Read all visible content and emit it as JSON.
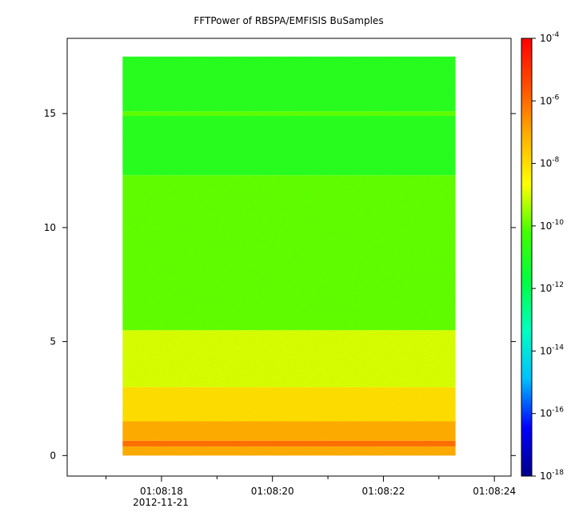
{
  "chart_data": {
    "type": "heatmap",
    "title": "FFTPower of RBSPA/EMFISIS  BuSamples",
    "xlabel": "",
    "ylabel": "",
    "x_axis": {
      "type": "time",
      "date_label": "2012-11-21",
      "range": [
        "01:08:16.3",
        "01:08:24.3"
      ],
      "ticks": [
        "01:08:18",
        "01:08:20",
        "01:08:22",
        "01:08:24"
      ],
      "minor_ticks": [
        "01:08:17",
        "01:08:19",
        "01:08:21",
        "01:08:23"
      ]
    },
    "y_axis": {
      "range": [
        -0.9,
        18.3
      ],
      "ticks": [
        0,
        5,
        10,
        15
      ]
    },
    "data_extent": {
      "x": [
        "01:08:17.3",
        "01:08:23.3"
      ],
      "y": [
        0,
        17.5
      ]
    },
    "colorbar": {
      "scale": "log",
      "range": [
        "1e-18",
        "1e-4"
      ],
      "tick_base": "10",
      "tick_exponents": [
        "-4",
        "-6",
        "-8",
        "-10",
        "-12",
        "-14",
        "-16",
        "-18"
      ],
      "colormap": [
        "#00008b",
        "#0000ff",
        "#00c0ff",
        "#00ffc0",
        "#00ff40",
        "#40ff00",
        "#ffff00",
        "#ffb000",
        "#ff5000",
        "#ff0000"
      ]
    },
    "bands": [
      {
        "y_range": [
          0,
          0.4
        ],
        "level": "1e-7"
      },
      {
        "y_range": [
          0.4,
          0.65
        ],
        "level": "1e-6"
      },
      {
        "y_range": [
          0.65,
          1.5
        ],
        "level": "1e-7"
      },
      {
        "y_range": [
          1.5,
          3.0
        ],
        "level": "1e-8"
      },
      {
        "y_range": [
          3.0,
          5.5
        ],
        "level": "1e-9"
      },
      {
        "y_range": [
          5.5,
          12.3
        ],
        "level": "1e-10"
      },
      {
        "y_range": [
          12.3,
          14.9
        ],
        "level": "1e-11"
      },
      {
        "y_range": [
          14.9,
          15.1
        ],
        "level": "1e-10"
      },
      {
        "y_range": [
          15.1,
          17.5
        ],
        "level": "1e-11"
      }
    ]
  }
}
